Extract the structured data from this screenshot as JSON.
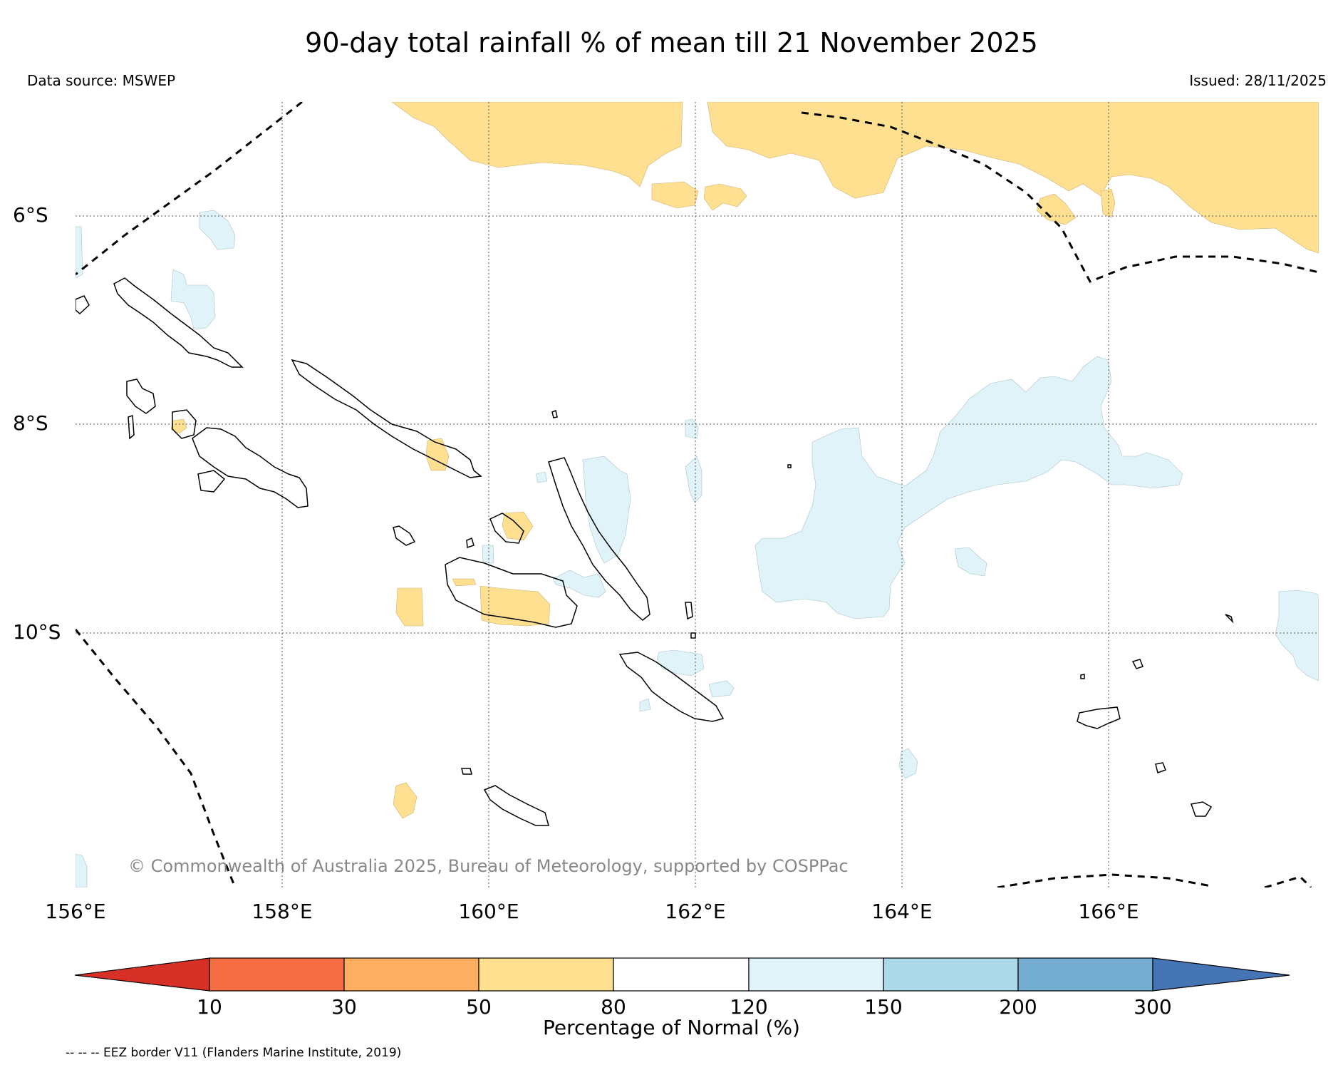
{
  "title": "90-day total rainfall % of mean till 21 November 2025",
  "data_source": "Data source: MSWEP",
  "issued": "Issued: 28/11/2025",
  "copyright": "© Commonwealth of Australia 2025, Bureau of Meteorology, supported by COSPPac",
  "map": {
    "lon_labels": [
      "156°E",
      "158°E",
      "160°E",
      "162°E",
      "164°E",
      "166°E"
    ],
    "lat_labels": [
      "6°S",
      "8°S",
      "10°S"
    ],
    "region": "Solomon Islands"
  },
  "colorbar": {
    "title": "Percentage of Normal (%)",
    "ticks": [
      "10",
      "30",
      "50",
      "80",
      "120",
      "150",
      "200",
      "300"
    ],
    "colors": [
      "#d73027",
      "#f46d43",
      "#fdae61",
      "#fee090",
      "#ffffff",
      "#e0f3f8",
      "#abd9e9",
      "#74add1",
      "#4575b4"
    ]
  },
  "legend_note": "-- -- -- EEZ border V11 (Flanders Marine Institute, 2019)"
}
